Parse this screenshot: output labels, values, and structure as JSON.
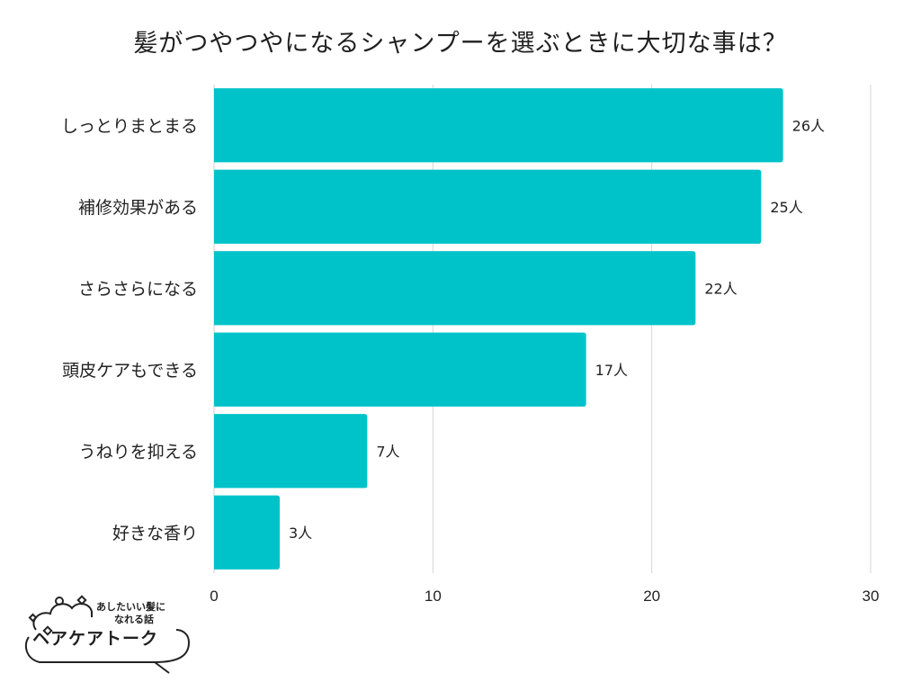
{
  "chart_data": {
    "type": "bar",
    "orientation": "horizontal",
    "title": "髪がつやつやになるシャンプーを選ぶときに大切な事は？",
    "categories": [
      "しっとりまとまる",
      "補修効果がある",
      "さらさらになる",
      "頭皮ケアもできる",
      "うねりを抑える",
      "好きな香り"
    ],
    "values": [
      26,
      25,
      22,
      17,
      7,
      3
    ],
    "value_labels": [
      "26人",
      "25人",
      "22人",
      "17人",
      "7人",
      "3人"
    ],
    "xlim": [
      0,
      30
    ],
    "xticks": [
      "0",
      "10",
      "20",
      "30"
    ],
    "grid": true,
    "bar_color": "#00c3c9"
  },
  "logo": {
    "tagline_line1": "あしたいい髪に",
    "tagline_line2": "なれる話",
    "brand": "ヘアケアトーク"
  }
}
